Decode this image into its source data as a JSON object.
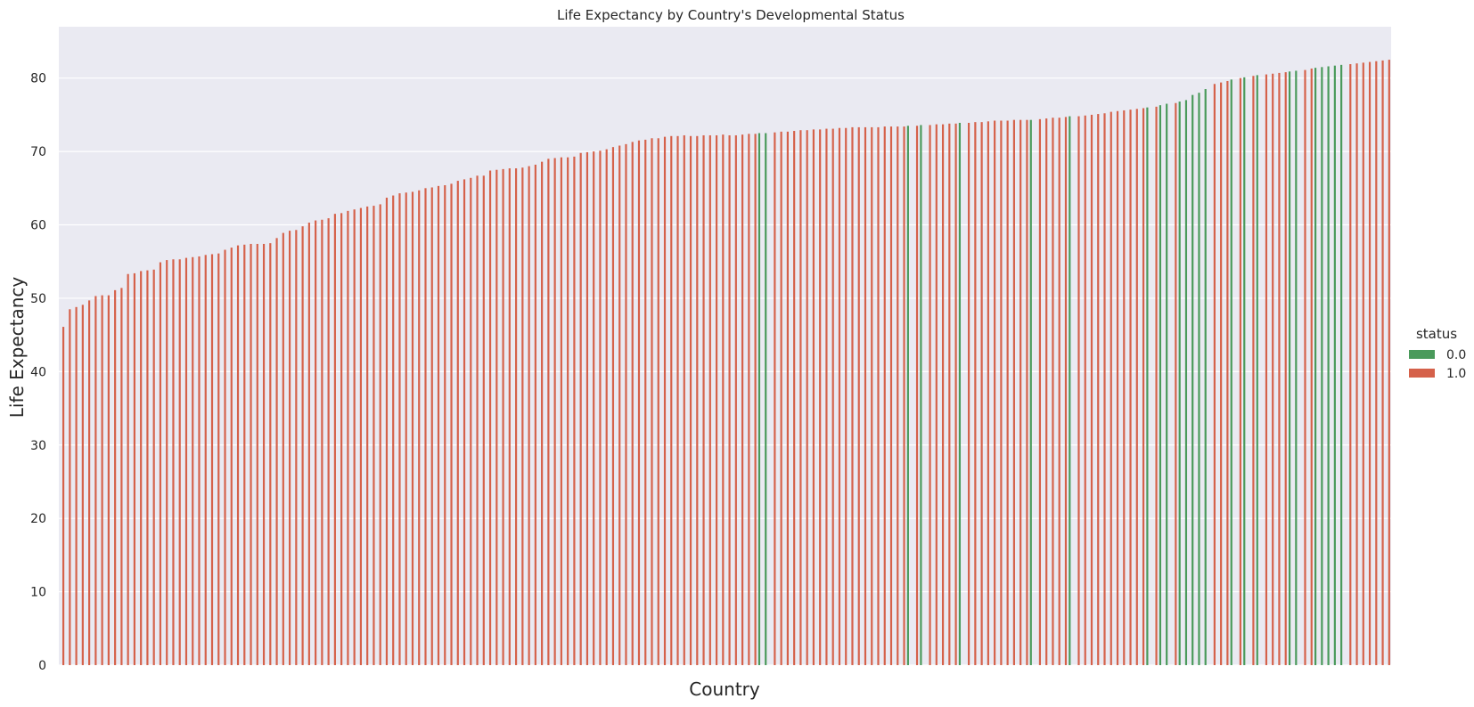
{
  "chart_data": {
    "type": "bar",
    "title": "Life Expectancy by Country's Developmental Status",
    "xlabel": "Country",
    "ylabel": "Life Expectancy",
    "ylim": [
      0,
      87
    ],
    "yticks": [
      0,
      10,
      20,
      30,
      40,
      50,
      60,
      70,
      80
    ],
    "grid": true,
    "legend": {
      "title": "status",
      "placement": "right",
      "entries": [
        {
          "label": "0.0",
          "color": "#4a9a5b"
        },
        {
          "label": "1.0",
          "color": "#d5614a"
        }
      ]
    },
    "categories_note": "one bar per country, sorted ascending by life expectancy; country names are not printed",
    "values": [
      46.1,
      48.5,
      48.8,
      49.1,
      49.7,
      50.3,
      50.4,
      50.4,
      51.1,
      51.4,
      53.3,
      53.4,
      53.7,
      53.8,
      53.9,
      54.9,
      55.2,
      55.3,
      55.3,
      55.5,
      55.6,
      55.7,
      55.9,
      56.0,
      56.1,
      56.6,
      56.9,
      57.2,
      57.3,
      57.4,
      57.4,
      57.4,
      57.5,
      58.2,
      58.9,
      59.2,
      59.3,
      59.8,
      60.3,
      60.6,
      60.7,
      60.9,
      61.5,
      61.6,
      61.9,
      62.1,
      62.3,
      62.5,
      62.6,
      62.8,
      63.7,
      64.0,
      64.3,
      64.4,
      64.5,
      64.7,
      65.0,
      65.1,
      65.3,
      65.4,
      65.6,
      66.0,
      66.2,
      66.4,
      66.7,
      66.7,
      67.4,
      67.5,
      67.6,
      67.7,
      67.7,
      67.8,
      68.0,
      68.2,
      68.6,
      69.0,
      69.1,
      69.2,
      69.2,
      69.3,
      69.8,
      69.9,
      70.0,
      70.1,
      70.3,
      70.6,
      70.8,
      71.0,
      71.3,
      71.5,
      71.6,
      71.8,
      71.8,
      72.0,
      72.1,
      72.1,
      72.2,
      72.1,
      72.1,
      72.2,
      72.2,
      72.2,
      72.3,
      72.2,
      72.2,
      72.3,
      72.4,
      72.4,
      72.5,
      72.5,
      72.6,
      72.7,
      72.7,
      72.8,
      72.9,
      72.9,
      73.0,
      73.0,
      73.1,
      73.1,
      73.2,
      73.2,
      73.3,
      73.3,
      73.3,
      73.3,
      73.3,
      73.4,
      73.4,
      73.4,
      73.4,
      73.5,
      73.5,
      73.6,
      73.6,
      73.7,
      73.7,
      73.8,
      73.8,
      73.9,
      73.9,
      74.0,
      74.0,
      74.1,
      74.2,
      74.2,
      74.2,
      74.3,
      74.3,
      74.3,
      74.3,
      74.4,
      74.5,
      74.6,
      74.6,
      74.7,
      74.8,
      74.8,
      74.9,
      75.0,
      75.1,
      75.2,
      75.4,
      75.5,
      75.6,
      75.7,
      75.8,
      75.9,
      76.0,
      76.1,
      76.3,
      76.5,
      76.6,
      76.8,
      77.0,
      77.7,
      78.0,
      78.5,
      79.2,
      79.4,
      79.6,
      79.8,
      80.0,
      80.1,
      80.3,
      80.4,
      80.5,
      80.6,
      80.7,
      80.8,
      80.9,
      81.0,
      81.1,
      81.3,
      81.4,
      81.5,
      81.6,
      81.7,
      81.8,
      81.9,
      82.0,
      82.1,
      82.2,
      82.3,
      82.4,
      82.5
    ],
    "status": [
      1,
      1,
      1,
      1,
      1,
      1,
      1,
      1,
      1,
      1,
      1,
      1,
      1,
      1,
      1,
      1,
      1,
      1,
      1,
      1,
      1,
      1,
      1,
      1,
      1,
      1,
      1,
      1,
      1,
      1,
      1,
      1,
      1,
      1,
      1,
      1,
      1,
      1,
      1,
      1,
      1,
      1,
      1,
      1,
      1,
      1,
      1,
      1,
      1,
      1,
      1,
      1,
      1,
      1,
      1,
      1,
      1,
      1,
      1,
      1,
      1,
      1,
      1,
      1,
      1,
      1,
      1,
      1,
      1,
      1,
      1,
      1,
      1,
      1,
      1,
      1,
      1,
      1,
      1,
      1,
      1,
      1,
      1,
      1,
      1,
      1,
      1,
      1,
      1,
      1,
      1,
      1,
      1,
      1,
      1,
      1,
      1,
      1,
      1,
      1,
      1,
      1,
      1,
      1,
      1,
      1,
      1,
      1,
      0,
      0,
      1,
      1,
      1,
      1,
      1,
      1,
      1,
      1,
      1,
      1,
      1,
      1,
      1,
      1,
      1,
      1,
      1,
      1,
      1,
      1,
      1,
      0,
      1,
      0,
      1,
      1,
      1,
      1,
      1,
      0,
      1,
      1,
      1,
      1,
      1,
      1,
      1,
      1,
      1,
      1,
      0,
      1,
      1,
      1,
      1,
      1,
      0,
      1,
      1,
      1,
      1,
      1,
      1,
      1,
      1,
      1,
      1,
      1,
      0,
      1,
      0,
      0,
      1,
      0,
      0,
      0,
      0,
      0,
      1,
      1,
      1,
      0,
      1,
      0,
      1,
      0,
      1,
      1,
      1,
      1,
      0,
      0,
      1,
      1,
      0,
      0,
      0,
      0,
      0
    ]
  }
}
